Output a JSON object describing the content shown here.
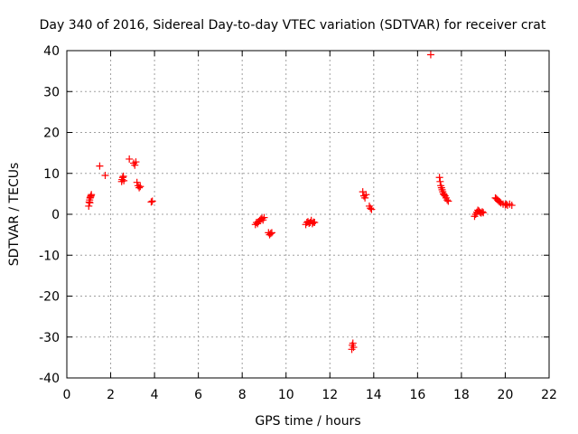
{
  "chart_data": {
    "type": "scatter",
    "title": "Day 340 of 2016, Sidereal Day-to-day VTEC variation (SDTVAR) for receiver crat",
    "xlabel": "GPS time / hours",
    "ylabel": "SDTVAR / TECUs",
    "xlim": [
      0,
      22
    ],
    "ylim": [
      -40,
      40
    ],
    "xticks": [
      0,
      2,
      4,
      6,
      8,
      10,
      12,
      14,
      16,
      18,
      20,
      22
    ],
    "yticks": [
      -40,
      -30,
      -20,
      -10,
      0,
      10,
      20,
      30,
      40
    ],
    "grid": true,
    "marker": "+",
    "color": "#ff0000",
    "series": [
      {
        "name": "crat",
        "x": [
          1.0,
          1.02,
          1.04,
          1.06,
          1.08,
          1.1,
          1.12,
          1.05,
          1.5,
          1.75,
          2.5,
          2.52,
          2.55,
          2.58,
          2.6,
          2.85,
          3.05,
          3.1,
          3.15,
          3.2,
          3.25,
          3.3,
          3.35,
          3.85,
          3.9,
          8.6,
          8.65,
          8.7,
          8.75,
          8.8,
          8.85,
          8.9,
          8.95,
          9.0,
          9.2,
          9.25,
          9.3,
          9.35,
          10.9,
          10.95,
          11.0,
          11.05,
          11.1,
          11.15,
          11.2,
          11.25,
          11.3,
          13.0,
          13.02,
          13.05,
          13.08,
          13.5,
          13.55,
          13.6,
          13.65,
          13.8,
          13.85,
          13.9,
          16.6,
          17.0,
          17.03,
          17.06,
          17.09,
          17.12,
          17.15,
          17.18,
          17.21,
          17.25,
          17.3,
          17.35,
          17.4,
          18.6,
          18.65,
          18.7,
          18.75,
          18.8,
          18.85,
          18.9,
          18.95,
          19.0,
          19.55,
          19.6,
          19.65,
          19.7,
          19.75,
          19.8,
          19.9,
          20.0,
          20.05,
          20.1,
          20.2,
          20.3
        ],
        "y": [
          2.0,
          3.0,
          3.5,
          4.0,
          4.2,
          4.5,
          4.8,
          2.8,
          11.8,
          9.5,
          8.0,
          8.5,
          9.0,
          9.3,
          8.2,
          13.5,
          12.5,
          12.0,
          12.8,
          7.8,
          7.0,
          6.5,
          6.8,
          3.0,
          3.2,
          -2.5,
          -2.0,
          -2.3,
          -1.8,
          -1.5,
          -1.2,
          -1.0,
          -1.4,
          -0.8,
          -4.5,
          -5.0,
          -4.7,
          -4.5,
          -2.5,
          -2.0,
          -1.8,
          -2.2,
          -2.0,
          -1.5,
          -2.3,
          -1.9,
          -2.0,
          -33.0,
          -32.0,
          -31.5,
          -32.5,
          5.5,
          4.5,
          4.0,
          4.8,
          2.0,
          1.5,
          1.2,
          39.0,
          9.0,
          8.0,
          7.0,
          6.5,
          6.0,
          5.5,
          5.0,
          4.8,
          4.5,
          4.0,
          3.5,
          3.2,
          -0.5,
          0.0,
          0.5,
          1.0,
          0.8,
          0.5,
          0.3,
          0.6,
          0.4,
          4.0,
          3.8,
          3.5,
          3.2,
          3.0,
          2.8,
          2.5,
          2.3,
          2.5,
          2.2,
          2.5,
          2.2
        ]
      }
    ]
  }
}
